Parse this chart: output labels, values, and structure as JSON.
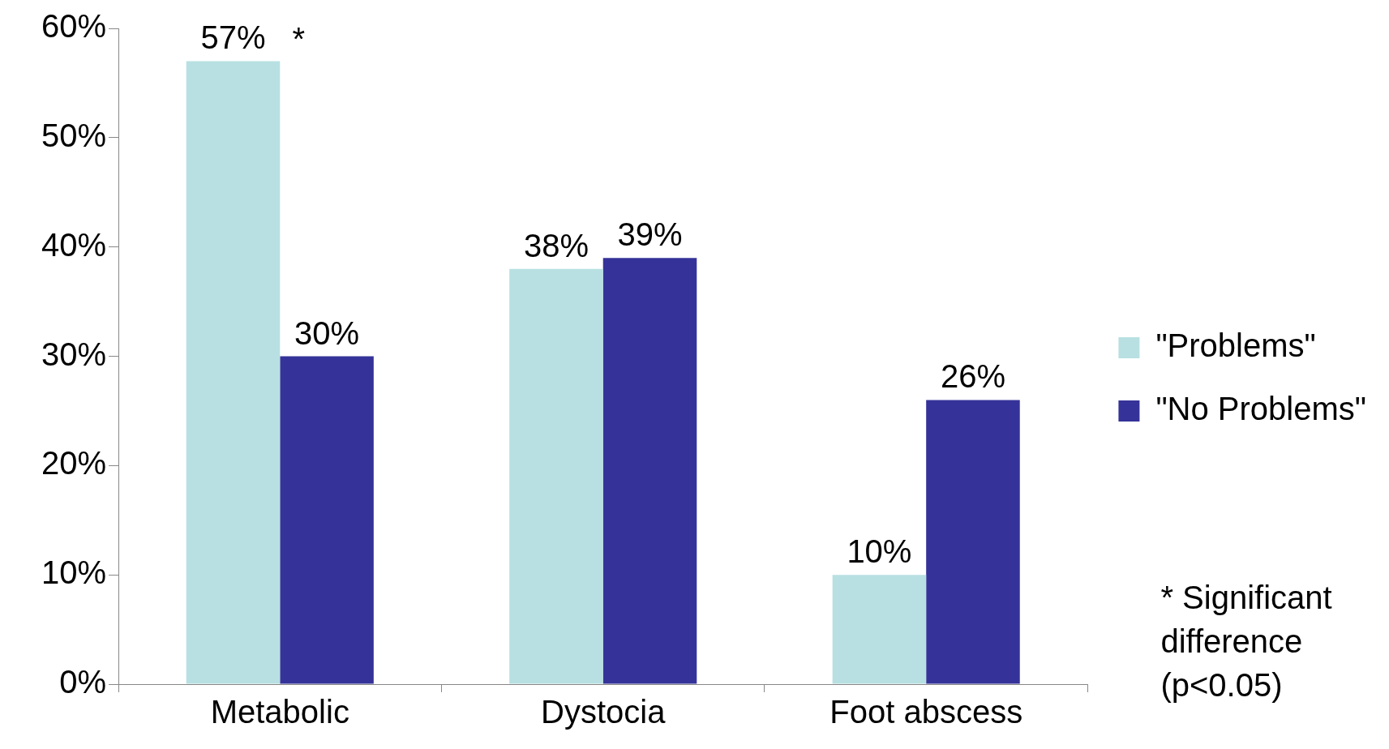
{
  "chart_data": {
    "type": "bar",
    "categories": [
      "Metabolic",
      "Dystocia",
      "Foot abscess"
    ],
    "series": [
      {
        "name": "\"Problems\"",
        "color": "#b8e0e2",
        "values": [
          57,
          38,
          10
        ],
        "value_labels": [
          "57%",
          "38%",
          "10%"
        ]
      },
      {
        "name": "\"No Problems\"",
        "color": "#353399",
        "values": [
          30,
          39,
          26
        ],
        "value_labels": [
          "30%",
          "39%",
          "26%"
        ]
      }
    ],
    "ylim": [
      0,
      60
    ],
    "yticks": [
      {
        "value": 0,
        "label": "0%"
      },
      {
        "value": 10,
        "label": "10%"
      },
      {
        "value": 20,
        "label": "20%"
      },
      {
        "value": 30,
        "label": "30%"
      },
      {
        "value": 40,
        "label": "40%"
      },
      {
        "value": 50,
        "label": "50%"
      },
      {
        "value": 60,
        "label": "60%"
      }
    ],
    "annotations": [
      {
        "text": "*",
        "x": "Metabolic",
        "y": 57
      },
      "* Significant difference (p<0.05)"
    ],
    "legend": "right",
    "grid": false
  }
}
